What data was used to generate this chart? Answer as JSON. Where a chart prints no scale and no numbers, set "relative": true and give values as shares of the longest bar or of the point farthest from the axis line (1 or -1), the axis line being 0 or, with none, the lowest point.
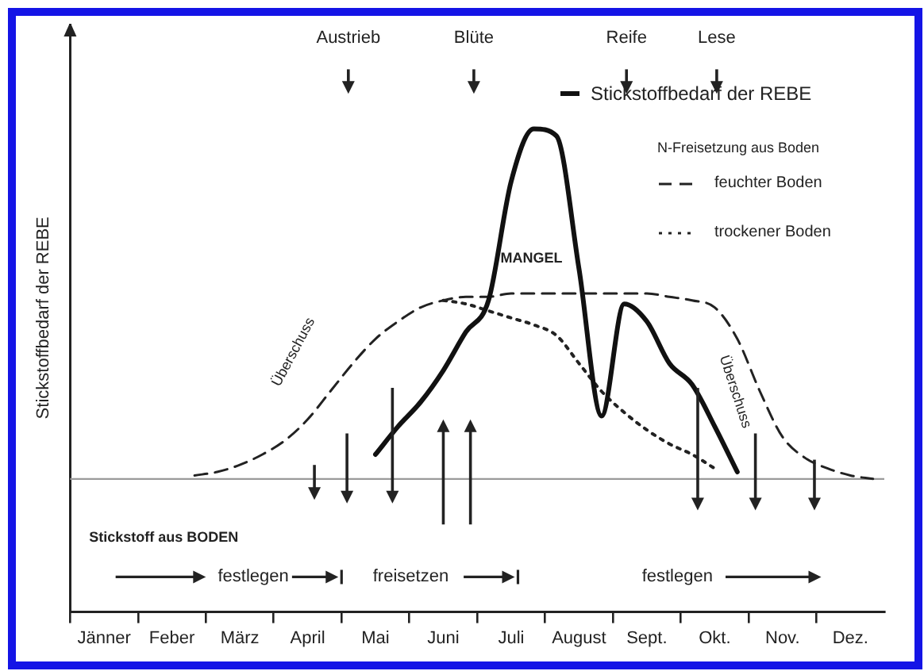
{
  "chart_data": {
    "type": "line",
    "relative": true,
    "ylabel": "Stickstoffbedarf der REBE",
    "legend": "top right",
    "legend_title": "N-Freisetzung aus Boden",
    "categories": [
      null,
      "Jänner",
      null,
      null,
      "Feber",
      null,
      null,
      "März",
      null,
      null,
      "April",
      null,
      null,
      "Mai",
      null,
      null,
      "Juni",
      null,
      null,
      "Juli",
      null,
      null,
      "August",
      null,
      null,
      "Sept.",
      null,
      null,
      "Okt.",
      null,
      null,
      "Nov.",
      null,
      null,
      "Dez.",
      null
    ],
    "series": [
      {
        "name": "Stickstoffbedarf der REBE",
        "color": "#111111",
        "line_style": "solid",
        "values": [
          null,
          null,
          null,
          null,
          null,
          null,
          null,
          null,
          null,
          null,
          null,
          null,
          null,
          0.07,
          0.15,
          0.22,
          0.31,
          0.42,
          0.51,
          0.85,
          1.0,
          0.98,
          0.6,
          0.18,
          0.5,
          0.45,
          0.33,
          0.27,
          0.15,
          0.02,
          null,
          null,
          null,
          null,
          null,
          null
        ]
      },
      {
        "name": "feuchter Boden",
        "color": "#222222",
        "line_style": "dashed",
        "values": [
          null,
          null,
          null,
          null,
          null,
          0.01,
          0.02,
          0.04,
          0.07,
          0.11,
          0.17,
          0.25,
          0.33,
          0.4,
          0.45,
          0.49,
          0.51,
          0.52,
          0.52,
          0.53,
          0.53,
          0.53,
          0.53,
          0.53,
          0.53,
          0.53,
          0.52,
          0.51,
          0.49,
          0.4,
          0.25,
          0.12,
          0.06,
          0.03,
          0.01,
          0
        ]
      },
      {
        "name": "trockener Boden",
        "color": "#222222",
        "line_style": "dotted",
        "values": [
          null,
          null,
          null,
          null,
          null,
          null,
          null,
          null,
          null,
          null,
          null,
          null,
          null,
          null,
          null,
          null,
          0.51,
          0.5,
          0.48,
          0.46,
          0.44,
          0.41,
          0.33,
          0.25,
          0.19,
          0.14,
          0.1,
          0.07,
          0.03,
          null,
          null,
          null,
          null,
          null,
          null,
          null
        ]
      }
    ],
    "ref_lines": [
      {
        "axis": "y",
        "value": 0,
        "color": "#9a9a9a"
      }
    ],
    "annotations": [
      "Austrieb",
      "Blüte",
      "Reife",
      "Lese",
      "MANGEL",
      "Überschuss",
      "Überschuss",
      "Stickstoff aus BODEN",
      "festlegen",
      "freisetzen",
      "festlegen"
    ]
  }
}
